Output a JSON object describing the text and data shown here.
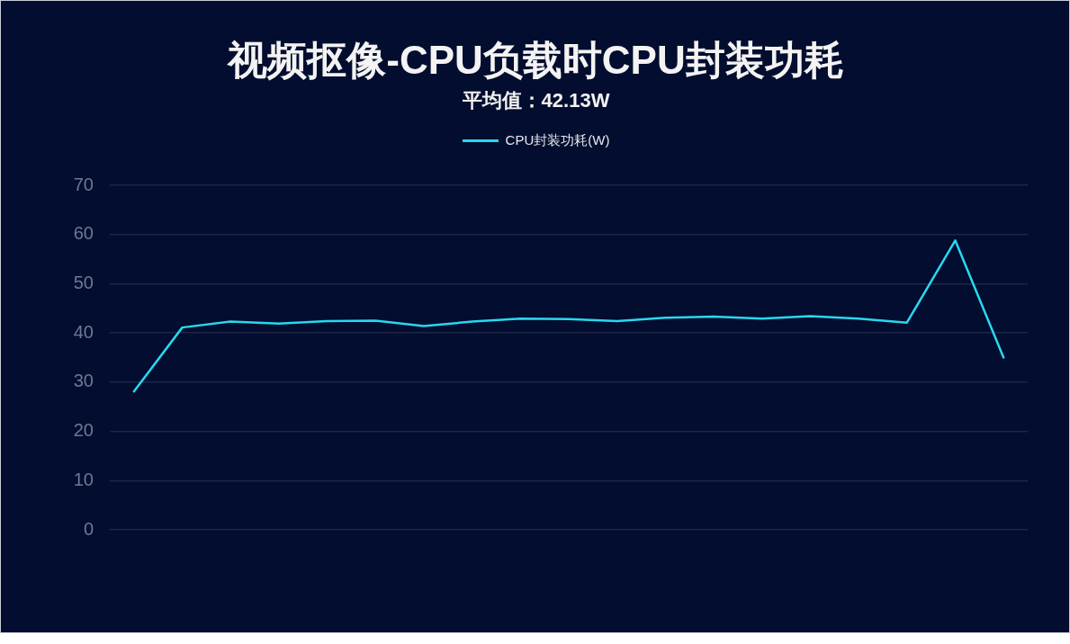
{
  "chart_data": {
    "type": "line",
    "title": "视频抠像-CPU负载时CPU封装功耗",
    "subtitle": "平均值：42.13W",
    "categories": [
      null,
      null,
      null,
      null,
      null,
      null,
      null,
      null,
      null,
      null,
      null,
      null,
      null,
      null,
      null,
      null,
      null,
      null,
      null
    ],
    "series": [
      {
        "name": "CPU封装功耗(W)",
        "color": "#28d8ef",
        "values": [
          28.1,
          41.1,
          42.3,
          41.9,
          42.4,
          42.5,
          41.4,
          42.3,
          42.9,
          42.8,
          42.4,
          43.1,
          43.3,
          42.9,
          43.4,
          42.9,
          42.1,
          58.8,
          35.0
        ]
      }
    ],
    "ylim": [
      0,
      70
    ],
    "yticks": [
      0,
      10,
      20,
      30,
      40,
      50,
      60,
      70
    ],
    "grid": "y",
    "legend": "top"
  }
}
